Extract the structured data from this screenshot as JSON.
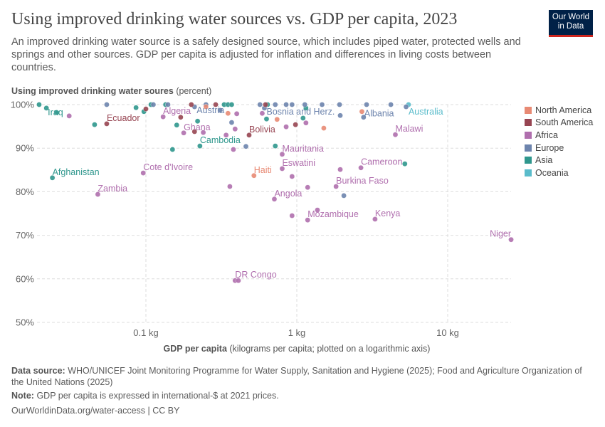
{
  "header": {
    "title": "Using improved drinking water sources vs. GDP per capita, 2023",
    "subtitle": "An improved drinking water source is a safely designed source, which includes piped water, protected wells and springs and other sources. GDP per capita is adjusted for inflation and differences in living costs between countries.",
    "logo_line1": "Our World",
    "logo_line2": "in Data"
  },
  "chart_data": {
    "type": "scatter",
    "title": "Using improved drinking water sources vs. GDP per capita, 2023",
    "ylabel_bold": "Using improved drinking water soures",
    "ylabel_unit": "(percent)",
    "xlabel_bold": "GDP per capita",
    "xlabel_unit": "(kilograms per capita; plotted on a logarithmic axis)",
    "x_scale": "log",
    "xlim": [
      0.0196,
      26
    ],
    "ylim": [
      50,
      100
    ],
    "x_ticks": [
      {
        "v": 0.1,
        "label": "0.1 kg"
      },
      {
        "v": 1,
        "label": "1 kg"
      },
      {
        "v": 10,
        "label": "10 kg"
      }
    ],
    "y_ticks": [
      {
        "v": 50,
        "label": "50%"
      },
      {
        "v": 60,
        "label": "60%"
      },
      {
        "v": 70,
        "label": "70%"
      },
      {
        "v": 80,
        "label": "80%"
      },
      {
        "v": 90,
        "label": "90%"
      },
      {
        "v": 100,
        "label": "100%"
      }
    ],
    "grid": true,
    "legend_position": "right",
    "legend": [
      {
        "name": "North America",
        "color": "#e88a74"
      },
      {
        "name": "South America",
        "color": "#974552"
      },
      {
        "name": "Africa",
        "color": "#b06fae"
      },
      {
        "name": "Europe",
        "color": "#6d84ad"
      },
      {
        "name": "Asia",
        "color": "#2f978d"
      },
      {
        "name": "Oceania",
        "color": "#5abccb"
      }
    ],
    "points": [
      {
        "x": 0.0219,
        "y": 99.2,
        "region": "Asia",
        "label": "Iraq"
      },
      {
        "x": 0.024,
        "y": 83.2,
        "region": "Asia",
        "label": "Afghanistan"
      },
      {
        "x": 0.048,
        "y": 79.4,
        "region": "Africa",
        "label": "Zambia"
      },
      {
        "x": 0.055,
        "y": 95.6,
        "region": "South America",
        "label": "Ecuador"
      },
      {
        "x": 0.096,
        "y": 84.3,
        "region": "Africa",
        "label": "Cote d'Ivoire"
      },
      {
        "x": 0.13,
        "y": 97.2,
        "region": "Africa",
        "label": "Algeria"
      },
      {
        "x": 0.178,
        "y": 93.5,
        "region": "Africa",
        "label": "Ghana"
      },
      {
        "x": 0.228,
        "y": 90.5,
        "region": "Asia",
        "label": "Cambodia"
      },
      {
        "x": 0.21,
        "y": 99.5,
        "region": "Europe",
        "label": "Austria"
      },
      {
        "x": 0.483,
        "y": 93.0,
        "region": "South America",
        "label": "Bolivia"
      },
      {
        "x": 0.61,
        "y": 99.2,
        "region": "Europe",
        "label": "Bosnia and Herz."
      },
      {
        "x": 0.8,
        "y": 88.6,
        "region": "Africa",
        "label": "Mauritania"
      },
      {
        "x": 0.52,
        "y": 83.7,
        "region": "North America",
        "label": "Haiti"
      },
      {
        "x": 0.8,
        "y": 85.3,
        "region": "Africa",
        "label": "Eswatini"
      },
      {
        "x": 0.71,
        "y": 78.3,
        "region": "Africa",
        "label": "Angola"
      },
      {
        "x": 0.39,
        "y": 59.6,
        "region": "Africa",
        "label": "DR Congo"
      },
      {
        "x": 0.41,
        "y": 59.6,
        "region": "Africa"
      },
      {
        "x": 1.18,
        "y": 73.5,
        "region": "Africa",
        "label": "Mozambique"
      },
      {
        "x": 1.82,
        "y": 81.2,
        "region": "Africa",
        "label": "Burkina Faso"
      },
      {
        "x": 2.66,
        "y": 85.5,
        "region": "Africa",
        "label": "Cameroon"
      },
      {
        "x": 3.3,
        "y": 73.7,
        "region": "Africa",
        "label": "Kenya"
      },
      {
        "x": 4.5,
        "y": 93.1,
        "region": "Africa",
        "label": "Malawi"
      },
      {
        "x": 2.77,
        "y": 97.1,
        "region": "Europe",
        "label": "Albania"
      },
      {
        "x": 5.5,
        "y": 100,
        "region": "Oceania",
        "label": "Australia"
      },
      {
        "x": 26.3,
        "y": 69.0,
        "region": "Africa",
        "label": "Niger"
      },
      {
        "x": 0.0196,
        "y": 100,
        "region": "Asia"
      },
      {
        "x": 0.0256,
        "y": 98.2,
        "region": "Asia"
      },
      {
        "x": 0.0457,
        "y": 95.4,
        "region": "Asia"
      },
      {
        "x": 0.086,
        "y": 99.3,
        "region": "Asia"
      },
      {
        "x": 0.097,
        "y": 98.4,
        "region": "Asia"
      },
      {
        "x": 0.108,
        "y": 100,
        "region": "Asia"
      },
      {
        "x": 0.135,
        "y": 100,
        "region": "Asia"
      },
      {
        "x": 0.16,
        "y": 95.3,
        "region": "Asia"
      },
      {
        "x": 0.15,
        "y": 89.7,
        "region": "Asia"
      },
      {
        "x": 0.22,
        "y": 96.2,
        "region": "Asia"
      },
      {
        "x": 0.33,
        "y": 100,
        "region": "Asia"
      },
      {
        "x": 0.35,
        "y": 100,
        "region": "Asia"
      },
      {
        "x": 0.37,
        "y": 100,
        "region": "Asia"
      },
      {
        "x": 0.63,
        "y": 96.7,
        "region": "Asia"
      },
      {
        "x": 0.64,
        "y": 100,
        "region": "Asia"
      },
      {
        "x": 0.72,
        "y": 90.5,
        "region": "Asia"
      },
      {
        "x": 1.1,
        "y": 96.9,
        "region": "Asia"
      },
      {
        "x": 1.15,
        "y": 99.2,
        "region": "Asia"
      },
      {
        "x": 5.2,
        "y": 86.4,
        "region": "Asia"
      },
      {
        "x": 0.055,
        "y": 100,
        "region": "Europe"
      },
      {
        "x": 0.112,
        "y": 100,
        "region": "Europe"
      },
      {
        "x": 0.14,
        "y": 100,
        "region": "Europe"
      },
      {
        "x": 0.25,
        "y": 100,
        "region": "Europe"
      },
      {
        "x": 0.31,
        "y": 98.7,
        "region": "Europe"
      },
      {
        "x": 0.37,
        "y": 95.9,
        "region": "Europe"
      },
      {
        "x": 0.46,
        "y": 90.4,
        "region": "Europe"
      },
      {
        "x": 0.57,
        "y": 100,
        "region": "Europe"
      },
      {
        "x": 0.72,
        "y": 100,
        "region": "Europe"
      },
      {
        "x": 0.85,
        "y": 100,
        "region": "Europe"
      },
      {
        "x": 0.93,
        "y": 100,
        "region": "Europe"
      },
      {
        "x": 1.13,
        "y": 100,
        "region": "Europe"
      },
      {
        "x": 1.47,
        "y": 100,
        "region": "Europe"
      },
      {
        "x": 1.92,
        "y": 100,
        "region": "Europe"
      },
      {
        "x": 1.94,
        "y": 97.5,
        "region": "Europe"
      },
      {
        "x": 2.9,
        "y": 100,
        "region": "Europe"
      },
      {
        "x": 4.2,
        "y": 100,
        "region": "Europe"
      },
      {
        "x": 5.3,
        "y": 99.5,
        "region": "Europe"
      },
      {
        "x": 2.05,
        "y": 79.1,
        "region": "Europe"
      },
      {
        "x": 0.031,
        "y": 97.4,
        "region": "Africa"
      },
      {
        "x": 0.24,
        "y": 93.6,
        "region": "Africa"
      },
      {
        "x": 0.34,
        "y": 93.0,
        "region": "Africa"
      },
      {
        "x": 0.38,
        "y": 89.7,
        "region": "Africa"
      },
      {
        "x": 0.39,
        "y": 94.4,
        "region": "Africa"
      },
      {
        "x": 0.36,
        "y": 81.2,
        "region": "Africa"
      },
      {
        "x": 0.4,
        "y": 97.9,
        "region": "Africa"
      },
      {
        "x": 0.59,
        "y": 98.0,
        "region": "Africa"
      },
      {
        "x": 0.85,
        "y": 94.9,
        "region": "Africa"
      },
      {
        "x": 0.93,
        "y": 83.5,
        "region": "Africa"
      },
      {
        "x": 0.93,
        "y": 74.5,
        "region": "Africa"
      },
      {
        "x": 1.18,
        "y": 81.0,
        "region": "Africa"
      },
      {
        "x": 1.37,
        "y": 75.8,
        "region": "Africa"
      },
      {
        "x": 1.15,
        "y": 95.8,
        "region": "Africa"
      },
      {
        "x": 1.94,
        "y": 85.1,
        "region": "Africa"
      },
      {
        "x": 0.1,
        "y": 99.0,
        "region": "South America"
      },
      {
        "x": 0.17,
        "y": 97.1,
        "region": "South America"
      },
      {
        "x": 0.21,
        "y": 93.8,
        "region": "South America"
      },
      {
        "x": 0.29,
        "y": 100,
        "region": "South America"
      },
      {
        "x": 0.2,
        "y": 100,
        "region": "South America"
      },
      {
        "x": 0.62,
        "y": 100,
        "region": "South America"
      },
      {
        "x": 0.98,
        "y": 95.4,
        "region": "South America"
      },
      {
        "x": 0.35,
        "y": 98.0,
        "region": "North America"
      },
      {
        "x": 0.25,
        "y": 99.5,
        "region": "North America"
      },
      {
        "x": 0.74,
        "y": 96.6,
        "region": "North America"
      },
      {
        "x": 1.51,
        "y": 94.6,
        "region": "North America"
      },
      {
        "x": 2.7,
        "y": 98.4,
        "region": "North America"
      }
    ]
  },
  "footer": {
    "source_label": "Data source:",
    "source_text": "WHO/UNICEF Joint Monitoring Programme for Water Supply, Sanitation and Hygiene (2025); Food and Agriculture Organization of the United Nations (2025)",
    "note_label": "Note:",
    "note_text": "GDP per capita is expressed in international-$ at 2021 prices.",
    "url": "OurWorldinData.org/water-access | CC BY"
  }
}
